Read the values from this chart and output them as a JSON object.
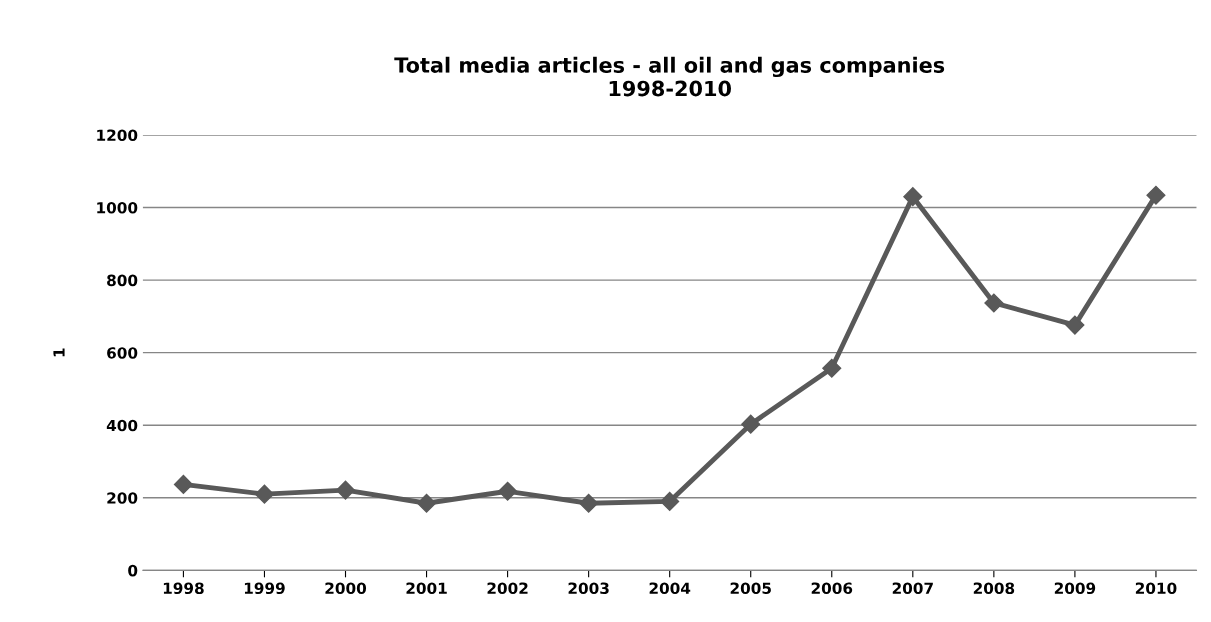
{
  "chart_data": {
    "type": "line",
    "title": "Total media articles - all oil and gas companies\n1998-2010",
    "ylabel": "1",
    "categories": [
      "1998",
      "1999",
      "2000",
      "2001",
      "2002",
      "2003",
      "2004",
      "2005",
      "2006",
      "2007",
      "2008",
      "2009",
      "2010"
    ],
    "series": [
      {
        "color": "#595959",
        "values": [
          237,
          210,
          221,
          185,
          218,
          185,
          190,
          403,
          557,
          1030,
          737,
          676,
          1034
        ]
      }
    ],
    "ylim": [
      0,
      1200
    ],
    "yticks": [
      0,
      200,
      400,
      600,
      800,
      1000,
      1200
    ],
    "grid": "y",
    "marker": "diamond",
    "line_style": "solid"
  }
}
